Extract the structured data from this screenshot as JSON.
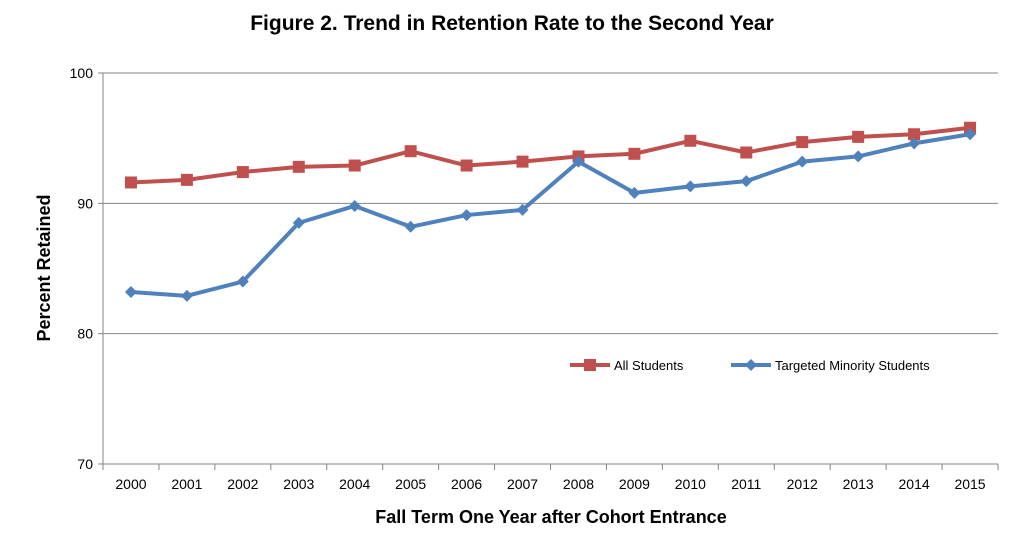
{
  "chart_data": {
    "type": "line",
    "title": "Figure 2. Trend in Retention Rate to the Second Year",
    "xlabel": "Fall Term One Year after Cohort Entrance",
    "ylabel": "Percent Retained",
    "categories": [
      "2000",
      "2001",
      "2002",
      "2003",
      "2004",
      "2005",
      "2006",
      "2007",
      "2008",
      "2009",
      "2010",
      "2011",
      "2012",
      "2013",
      "2014",
      "2015"
    ],
    "ylim": [
      70,
      100
    ],
    "yticks": [
      "70",
      "80",
      "90",
      "100"
    ],
    "grid": "horizontal",
    "legend_position": "right, inside plot",
    "series": [
      {
        "name": "All Students",
        "color": "#c0504d",
        "marker": "square",
        "values": [
          91.6,
          91.8,
          92.4,
          92.8,
          92.9,
          94.0,
          92.9,
          93.2,
          93.6,
          93.8,
          94.8,
          93.9,
          94.7,
          95.1,
          95.3,
          95.8
        ]
      },
      {
        "name": "Targeted Minority Students",
        "color": "#4f81bd",
        "marker": "diamond",
        "values": [
          83.2,
          82.9,
          84.0,
          88.5,
          89.8,
          88.2,
          89.1,
          89.5,
          93.2,
          90.8,
          91.3,
          91.7,
          93.2,
          93.6,
          94.6,
          95.3
        ]
      }
    ]
  }
}
